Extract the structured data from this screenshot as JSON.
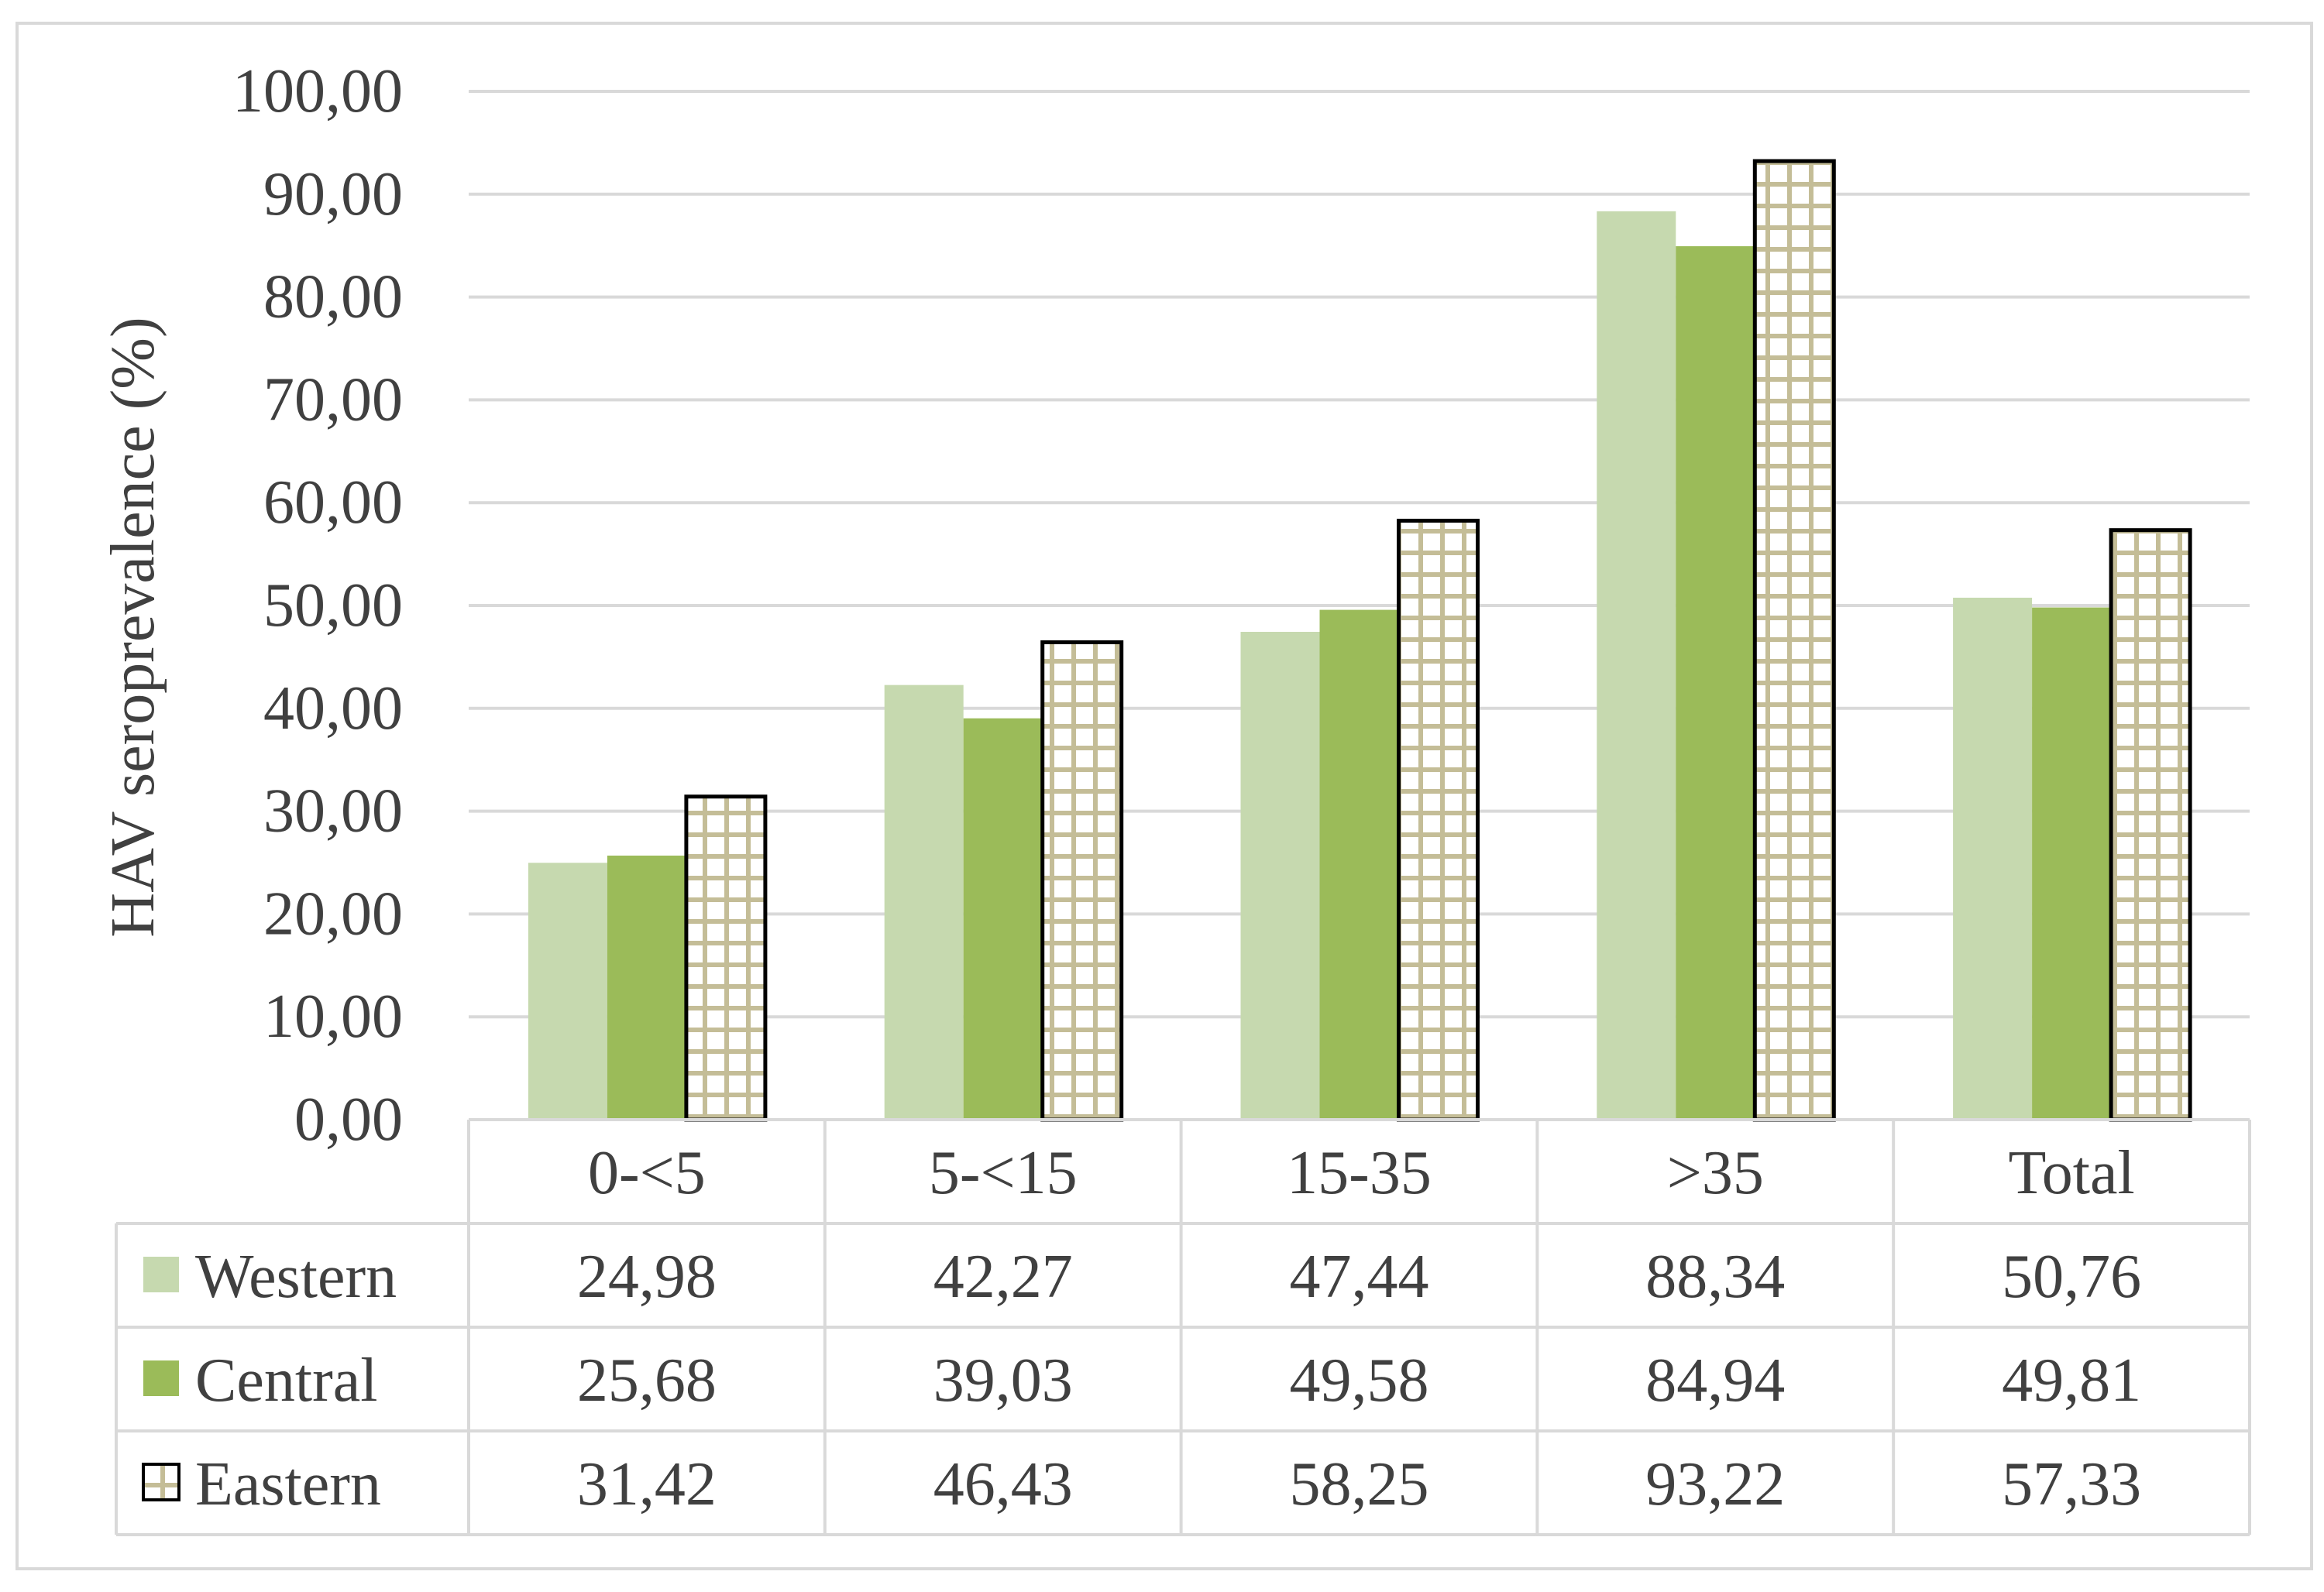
{
  "chart_data": {
    "type": "bar",
    "title": "",
    "xlabel": "",
    "ylabel": "HAV seroprevalence (%)",
    "ylim": [
      0,
      100
    ],
    "yticks": [
      0,
      10,
      20,
      30,
      40,
      50,
      60,
      70,
      80,
      90,
      100
    ],
    "ytick_labels": [
      "0,00",
      "10,00",
      "20,00",
      "30,00",
      "40,00",
      "50,00",
      "60,00",
      "70,00",
      "80,00",
      "90,00",
      "100,00"
    ],
    "grid": true,
    "legend": "data-table",
    "categories": [
      "0-<5",
      "5-<15",
      "15-35",
      ">35",
      "Total"
    ],
    "series": [
      {
        "name": "Western",
        "color": "#c6d9af",
        "pattern": "solid",
        "values": [
          24.98,
          42.27,
          47.44,
          88.34,
          50.76
        ],
        "labels": [
          "24,98",
          "42,27",
          "47,44",
          "88,34",
          "50,76"
        ]
      },
      {
        "name": "Central",
        "color": "#9bbb59",
        "pattern": "solid",
        "values": [
          25.68,
          39.03,
          49.58,
          84.94,
          49.81
        ],
        "labels": [
          "25,68",
          "39,03",
          "49,58",
          "84,94",
          "49,81"
        ]
      },
      {
        "name": "Eastern",
        "color": "#c4bd97",
        "pattern": "grid",
        "values": [
          31.42,
          46.43,
          58.25,
          93.22,
          57.33
        ],
        "labels": [
          "31,42",
          "46,43",
          "58,25",
          "93,22",
          "57,33"
        ]
      }
    ]
  }
}
